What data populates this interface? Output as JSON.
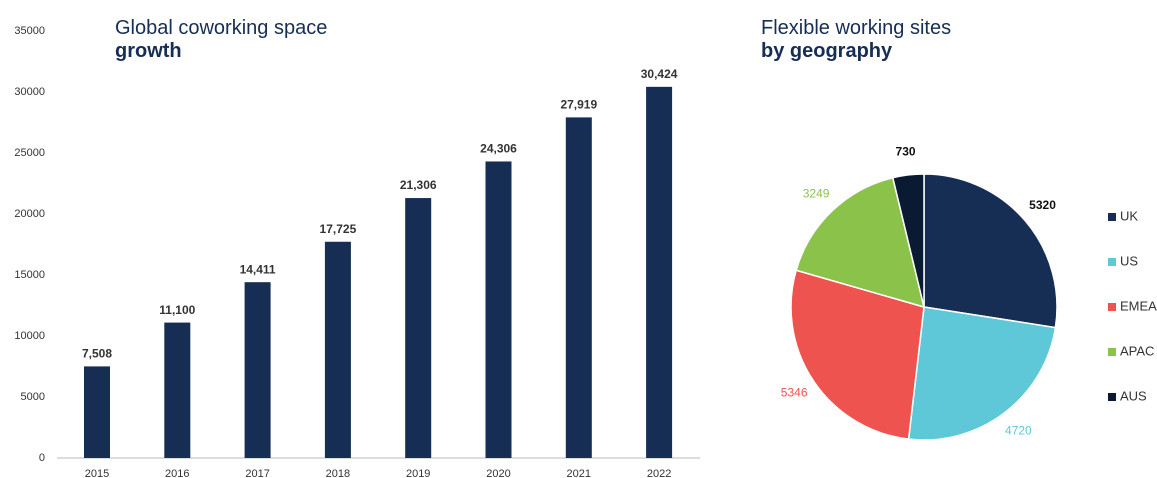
{
  "chart_data": [
    {
      "type": "bar",
      "title": "Global coworking space",
      "subtitle": "growth",
      "categories": [
        "2015",
        "2016",
        "2017",
        "2018",
        "2019",
        "2020",
        "2021",
        "2022"
      ],
      "values": [
        7508,
        11100,
        14411,
        17725,
        21306,
        24306,
        27919,
        30424
      ],
      "value_labels": [
        "7,508",
        "11,100",
        "14,411",
        "17,725",
        "21,306",
        "24,306",
        "27,919",
        "30,424"
      ],
      "color": "#162d54",
      "ylim": [
        0,
        35000
      ],
      "yticks": [
        0,
        5000,
        10000,
        15000,
        20000,
        25000,
        30000,
        35000
      ],
      "grid": false
    },
    {
      "type": "pie",
      "title": "Flexible working sites",
      "subtitle": "by geography",
      "categories": [
        "UK",
        "US",
        "EMEA",
        "APAC",
        "AUS"
      ],
      "values": [
        5320,
        4720,
        5346,
        3249,
        730
      ],
      "colors": [
        "#162d54",
        "#5ec8d8",
        "#ef5350",
        "#8bc34a",
        "#0b1a33"
      ],
      "legend": "right"
    }
  ]
}
